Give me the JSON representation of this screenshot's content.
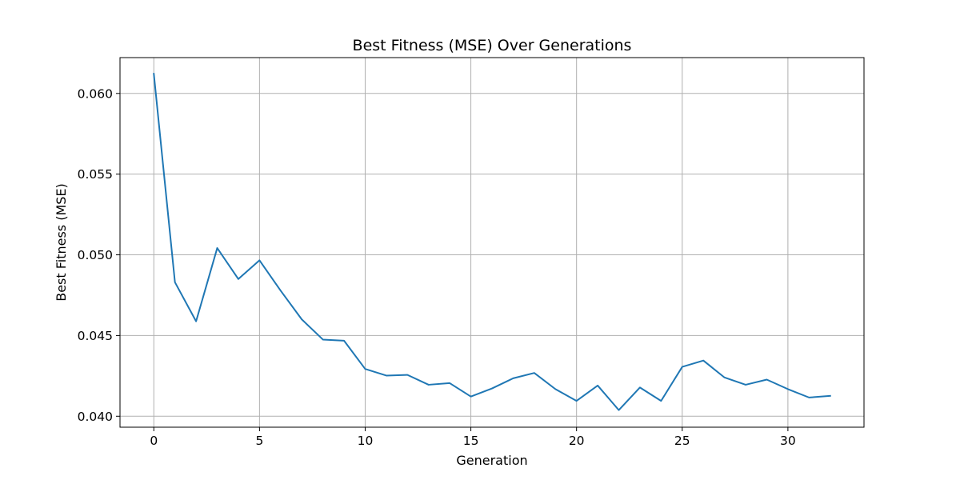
{
  "chart_data": {
    "type": "line",
    "title": "Best Fitness (MSE) Over Generations",
    "xlabel": "Generation",
    "ylabel": "Best Fitness (MSE)",
    "xlim": [
      -1.6,
      33.6
    ],
    "ylim": [
      0.03932,
      0.06222
    ],
    "x_ticks": [
      0,
      5,
      10,
      15,
      20,
      25,
      30
    ],
    "x_tick_labels": [
      "0",
      "5",
      "10",
      "15",
      "20",
      "25",
      "30"
    ],
    "y_ticks": [
      0.04,
      0.045,
      0.05,
      0.055,
      0.06
    ],
    "y_tick_labels": [
      "0.040",
      "0.045",
      "0.050",
      "0.055",
      "0.060"
    ],
    "grid": true,
    "legend": "none",
    "series": [
      {
        "color": "#1f77b4",
        "x": [
          0,
          1,
          2,
          3,
          4,
          5,
          6,
          7,
          8,
          9,
          10,
          11,
          12,
          13,
          14,
          15,
          16,
          17,
          18,
          19,
          20,
          21,
          22,
          23,
          24,
          25,
          26,
          27,
          28,
          29,
          30,
          31,
          32
        ],
        "y": [
          0.06122,
          0.0483,
          0.04588,
          0.05042,
          0.0485,
          0.04966,
          0.04778,
          0.046,
          0.04475,
          0.04468,
          0.04293,
          0.04252,
          0.04256,
          0.04195,
          0.04205,
          0.04122,
          0.04172,
          0.04235,
          0.04268,
          0.04168,
          0.04095,
          0.0419,
          0.04038,
          0.04178,
          0.04095,
          0.04306,
          0.04345,
          0.0424,
          0.04195,
          0.04227,
          0.04168,
          0.04116,
          0.04126
        ]
      }
    ]
  }
}
